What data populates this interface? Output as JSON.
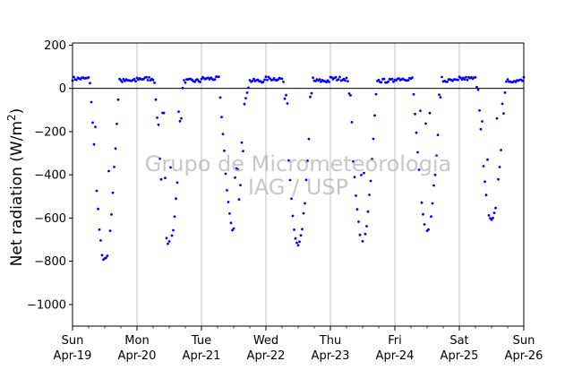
{
  "chart_data": {
    "type": "scatter",
    "ylabel_main": "Net radiation (W/m",
    "ylabel_sup": "2",
    "ylabel_close": ")",
    "xlim": [
      0,
      7
    ],
    "ylim": [
      -1100,
      210
    ],
    "yticks": [
      200,
      0,
      -200,
      -400,
      -600,
      -800,
      -1000
    ],
    "ytick_labels": [
      "200",
      "0",
      "−200",
      "−400",
      "−600",
      "−800",
      "−1000"
    ],
    "xticks": [
      {
        "x": 0,
        "day": "Sun",
        "date": "Apr-19"
      },
      {
        "x": 1,
        "day": "Mon",
        "date": "Apr-20"
      },
      {
        "x": 2,
        "day": "Tue",
        "date": "Apr-21"
      },
      {
        "x": 3,
        "day": "Wed",
        "date": "Apr-22"
      },
      {
        "x": 4,
        "day": "Thu",
        "date": "Apr-23"
      },
      {
        "x": 5,
        "day": "Fri",
        "date": "Apr-24"
      },
      {
        "x": 6,
        "day": "Sat",
        "date": "Apr-25"
      },
      {
        "x": 7,
        "day": "Sun",
        "date": "Apr-26"
      }
    ],
    "vertical_grid": true,
    "zero_line": true,
    "series_color": "#0000ff",
    "night_level": 45,
    "daily_minimum": [
      -800,
      -720,
      -650,
      -730,
      -700,
      -650,
      -610,
      -50
    ],
    "watermark_line1": "Grupo de Micrometeorologia",
    "watermark_line2": "IAG / USP"
  }
}
